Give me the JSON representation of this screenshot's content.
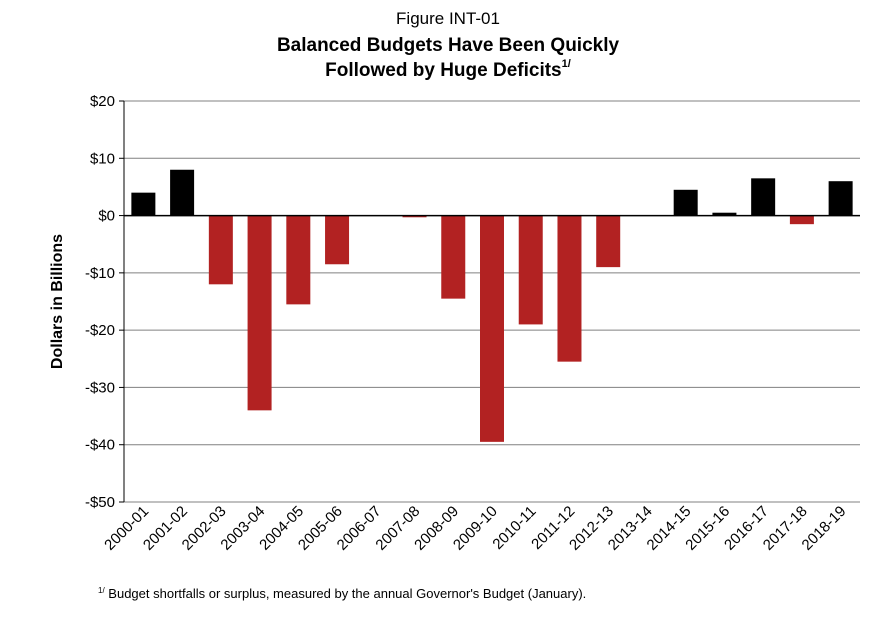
{
  "figure_label": "Figure INT-01",
  "title_line1": "Balanced Budgets Have Been Quickly",
  "title_line2": "Followed by Huge Deficits",
  "title_footnote_mark": "1/",
  "footnote_mark": "1/",
  "footnote_text": "Budget shortfalls or surplus, measured by the annual Governor's Budget (January).",
  "colors": {
    "surplus": "#000000",
    "deficit": "#b22222",
    "grid": "#808080"
  },
  "chart_data": {
    "type": "bar",
    "ylabel": "Dollars in Billions",
    "xlabel": "",
    "ylim": [
      -50,
      20
    ],
    "yticks": [
      20,
      10,
      0,
      -10,
      -20,
      -30,
      -40,
      -50
    ],
    "ytick_labels": [
      "$20",
      "$10",
      "$0",
      "-$10",
      "-$20",
      "-$30",
      "-$40",
      "-$50"
    ],
    "grid": true,
    "categories": [
      "2000-01",
      "2001-02",
      "2002-03",
      "2003-04",
      "2004-05",
      "2005-06",
      "2006-07",
      "2007-08",
      "2008-09",
      "2009-10",
      "2010-11",
      "2011-12",
      "2012-13",
      "2013-14",
      "2014-15",
      "2015-16",
      "2016-17",
      "2017-18",
      "2018-19"
    ],
    "values": [
      4,
      8,
      -12,
      -34,
      -15.5,
      -8.5,
      0,
      -0.3,
      -14.5,
      -39.5,
      -19,
      -25.5,
      -9,
      0,
      4.5,
      0.5,
      6.5,
      -1.5,
      6
    ]
  }
}
